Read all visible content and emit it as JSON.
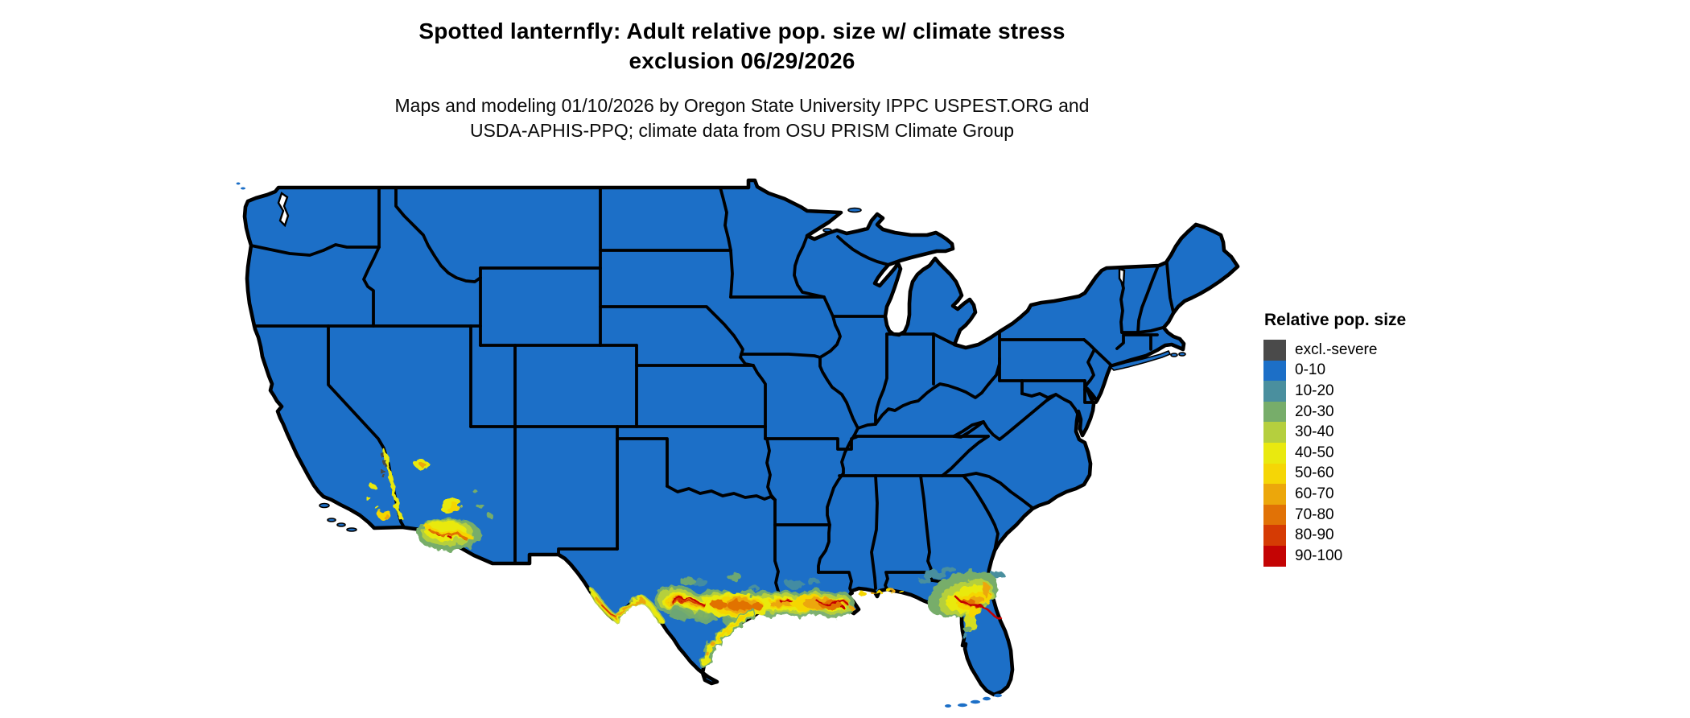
{
  "title": {
    "line1": "Spotted lanternfly: Adult relative pop. size w/ climate stress",
    "line2": "exclusion 06/29/2026"
  },
  "subtitle": {
    "line1": "Maps and modeling 01/10/2026 by Oregon State University IPPC USPEST.ORG and",
    "line2": "USDA-APHIS-PPQ; climate data from OSU PRISM Climate Group"
  },
  "legend": {
    "title": "Relative pop. size",
    "items": [
      {
        "label": "excl.-severe",
        "color": "#4a4a4a"
      },
      {
        "label": "0-10",
        "color": "#1c6fc7"
      },
      {
        "label": "10-20",
        "color": "#4a8f9e"
      },
      {
        "label": "20-30",
        "color": "#77ad6a"
      },
      {
        "label": "30-40",
        "color": "#b5cf3e"
      },
      {
        "label": "40-50",
        "color": "#e9e90f"
      },
      {
        "label": "50-60",
        "color": "#f5d606"
      },
      {
        "label": "60-70",
        "color": "#eca70b"
      },
      {
        "label": "70-80",
        "color": "#e17206"
      },
      {
        "label": "80-90",
        "color": "#d53b04"
      },
      {
        "label": "90-100",
        "color": "#c40404"
      }
    ]
  },
  "map": {
    "region": "Contiguous United States",
    "land_fill": "#1c6fc7",
    "border_color": "#000000",
    "water_background": "#ffffff",
    "dominant_class": "0-10",
    "hotspots": [
      {
        "area": "Southern Arizona deserts",
        "level": "30-80"
      },
      {
        "area": "Lower Colorado River valley (CA/AZ)",
        "level": "40-70 with excl.-severe specks"
      },
      {
        "area": "Rio Grande from El Paso to Del Rio",
        "level": "40-80"
      },
      {
        "area": "Central Texas to Houston and upper Texas coast",
        "level": "50-100"
      },
      {
        "area": "Louisiana Gulf Coast / New Orleans delta",
        "level": "50-90"
      },
      {
        "area": "Mississippi-Alabama-Florida panhandle coast",
        "level": "40-70 (spotty)"
      },
      {
        "area": "North-central Florida",
        "level": "40-90"
      }
    ]
  }
}
